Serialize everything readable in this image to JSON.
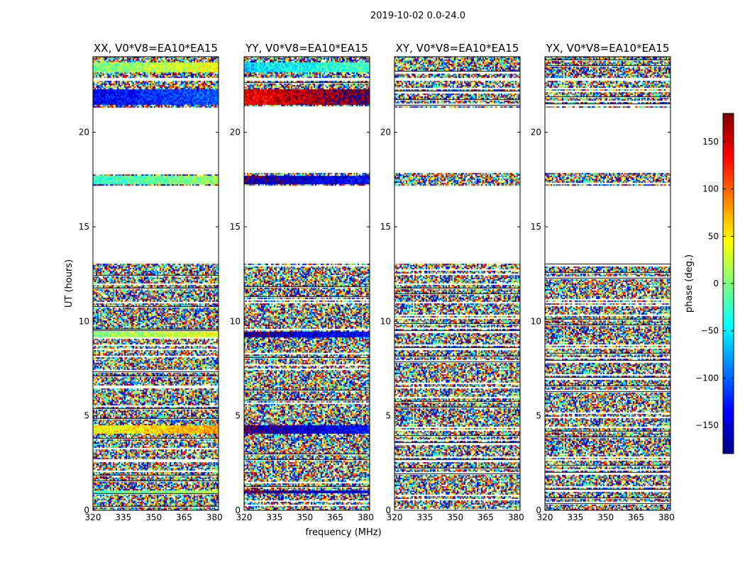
{
  "figure_title": "2019-10-02 0.0-24.0",
  "colors": {
    "frame": "#000000",
    "background": "#ffffff"
  },
  "chart_data": {
    "type": "heatmap",
    "title": "2019-10-02 0.0-24.0",
    "xlabel": "frequency (MHz)",
    "ylabel": "UT (hours)",
    "xlim": [
      320,
      382
    ],
    "ylim": [
      0,
      24
    ],
    "xticks": [
      320,
      335,
      350,
      365,
      380
    ],
    "yticks": [
      0,
      5,
      10,
      15,
      20
    ],
    "colorbar": {
      "label": "phase (deg.)",
      "range": [
        -180,
        180
      ],
      "ticks": [
        -150,
        -100,
        -50,
        0,
        50,
        100,
        150
      ],
      "tick_labels": [
        "−150",
        "−100",
        "−50",
        "0",
        "50",
        "100",
        "150"
      ],
      "colormap": [
        "#00007f",
        "#0000ff",
        "#007fff",
        "#00ffff",
        "#7fff7f",
        "#ffff00",
        "#ff7f00",
        "#ff0000",
        "#7f0000"
      ]
    },
    "panels": [
      {
        "title": "XX, V0*V8=EA10*EA15",
        "polarization": "XX"
      },
      {
        "title": "YY, V0*V8=EA10*EA15",
        "polarization": "YY"
      },
      {
        "title": "XY, V0*V8=EA10*EA15",
        "polarization": "XY"
      },
      {
        "title": "YX, V0*V8=EA10*EA15",
        "polarization": "YX"
      }
    ],
    "flagged_ut_ranges": [
      [
        13.1,
        17.2
      ],
      [
        17.9,
        21.3
      ],
      [
        22.8,
        22.9
      ],
      [
        11.0,
        11.1
      ]
    ],
    "coherent_bands": [
      {
        "panel": "XX",
        "ut": [
          21.5,
          22.3
        ],
        "phase": -120
      },
      {
        "panel": "XX",
        "ut": [
          23.2,
          23.7
        ],
        "phase": 20
      },
      {
        "panel": "XX",
        "ut": [
          17.3,
          17.7
        ],
        "phase": -10
      },
      {
        "panel": "XX",
        "ut": [
          9.2,
          9.5
        ],
        "phase": 20
      },
      {
        "panel": "XX",
        "ut": [
          4.1,
          4.5
        ],
        "phase": 60
      },
      {
        "panel": "XX",
        "ut": [
          0.9,
          1.1
        ],
        "phase": 0
      },
      {
        "panel": "YY",
        "ut": [
          21.5,
          22.3
        ],
        "phase": 160
      },
      {
        "panel": "YY",
        "ut": [
          23.2,
          23.7
        ],
        "phase": -40
      },
      {
        "panel": "YY",
        "ut": [
          17.3,
          17.7
        ],
        "phase": -150
      },
      {
        "panel": "YY",
        "ut": [
          9.2,
          9.5
        ],
        "phase": -150
      },
      {
        "panel": "YY",
        "ut": [
          4.1,
          4.5
        ],
        "phase": -150
      },
      {
        "panel": "YY",
        "ut": [
          0.9,
          1.1
        ],
        "phase": -160
      }
    ]
  }
}
